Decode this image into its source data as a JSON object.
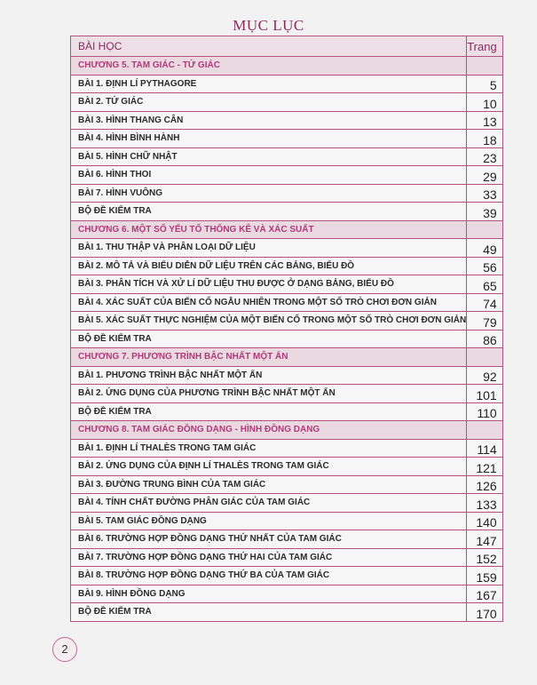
{
  "title": "MỤC LỤC",
  "header": {
    "lesson": "BÀI HỌC",
    "page": "Trang"
  },
  "chapters": [
    {
      "title": "CHƯƠNG 5. TAM GIÁC - TỨ GIÁC",
      "items": [
        {
          "label": "BÀI 1. ĐỊNH LÍ PYTHAGORE",
          "page": "5"
        },
        {
          "label": "BÀI 2. TỨ GIÁC",
          "page": "10"
        },
        {
          "label": "BÀI 3. HÌNH THANG CÂN",
          "page": "13"
        },
        {
          "label": "BÀI 4. HÌNH BÌNH HÀNH",
          "page": "18"
        },
        {
          "label": "BÀI 5. HÌNH CHỮ NHẬT",
          "page": "23"
        },
        {
          "label": "BÀI 6. HÌNH THOI",
          "page": "29"
        },
        {
          "label": "BÀI 7. HÌNH VUÔNG",
          "page": "33"
        },
        {
          "label": "BỘ ĐỀ KIỂM TRA",
          "page": "39"
        }
      ]
    },
    {
      "title": "CHƯƠNG 6. MỘT SỐ YẾU TỐ THỐNG KÊ VÀ XÁC SUẤT",
      "items": [
        {
          "label": "BÀI 1. THU THẬP VÀ PHÂN LOẠI DỮ LIỆU",
          "page": "49"
        },
        {
          "label": "BÀI 2. MÔ TẢ VÀ BIỂU DIỄN DỮ LIỆU TRÊN CÁC BẢNG, BIỂU ĐỒ",
          "page": "56"
        },
        {
          "label": "BÀI 3. PHÂN TÍCH VÀ XỬ LÍ DỮ LIỆU THU ĐƯỢC Ở DẠNG BẢNG, BIỂU ĐỒ",
          "page": "65"
        },
        {
          "label": "BÀI 4. XÁC SUẤT CỦA BIẾN CỐ NGẪU NHIÊN TRONG MỘT SỐ TRÒ CHƠI ĐƠN GIẢN",
          "page": "74"
        },
        {
          "label": "BÀI 5. XÁC SUẤT THỰC NGHIỆM CỦA MỘT BIẾN CỐ TRONG MỘT SỐ TRÒ CHƠI ĐƠN GIẢN",
          "page": "79"
        },
        {
          "label": "BỘ ĐỀ KIỂM TRA",
          "page": "86"
        }
      ]
    },
    {
      "title": "CHƯƠNG 7. PHƯƠNG TRÌNH BẬC NHẤT MỘT ẨN",
      "items": [
        {
          "label": "BÀI 1. PHƯƠNG TRÌNH BẬC NHẤT MỘT ẨN",
          "page": "92"
        },
        {
          "label": "BÀI 2. ỨNG DỤNG CỦA PHƯƠNG TRÌNH BẬC NHẤT MỘT ẨN",
          "page": "101"
        },
        {
          "label": "BỘ ĐỀ KIỂM TRA",
          "page": "110"
        }
      ]
    },
    {
      "title": "CHƯƠNG 8. TAM GIÁC ĐỒNG DẠNG - HÌNH ĐỒNG DẠNG",
      "items": [
        {
          "label": "BÀI 1. ĐỊNH LÍ THALÈS TRONG TAM GIÁC",
          "page": "114"
        },
        {
          "label": "BÀI 2. ỨNG DỤNG CỦA ĐỊNH LÍ THALÈS TRONG TAM GIÁC",
          "page": "121"
        },
        {
          "label": "BÀI 3. ĐƯỜNG TRUNG BÌNH CỦA TAM GIÁC",
          "page": "126"
        },
        {
          "label": "BÀI 4. TÍNH CHẤT ĐƯỜNG PHÂN GIÁC CỦA TAM GIÁC",
          "page": "133"
        },
        {
          "label": "BÀI 5. TAM GIÁC ĐỒNG DẠNG",
          "page": "140"
        },
        {
          "label": "BÀI 6. TRƯỜNG HỢP ĐỒNG DẠNG THỨ NHẤT CỦA TAM GIÁC",
          "page": "147"
        },
        {
          "label": "BÀI 7. TRƯỜNG HỢP ĐỒNG DẠNG THỨ HAI CỦA TAM GIÁC",
          "page": "152"
        },
        {
          "label": "BÀI 8. TRƯỜNG HỢP ĐỒNG DẠNG THỨ BA CỦA TAM GIÁC",
          "page": "159"
        },
        {
          "label": "BÀI 9. HÌNH ĐỒNG DẠNG",
          "page": "167"
        },
        {
          "label": "BỘ ĐỀ KIỂM TRA",
          "page": "170"
        }
      ]
    }
  ],
  "page_number": "2",
  "colors": {
    "border": "#b4527f",
    "chapter_text": "#b03a78",
    "chapter_bg": "#ead9e1"
  }
}
